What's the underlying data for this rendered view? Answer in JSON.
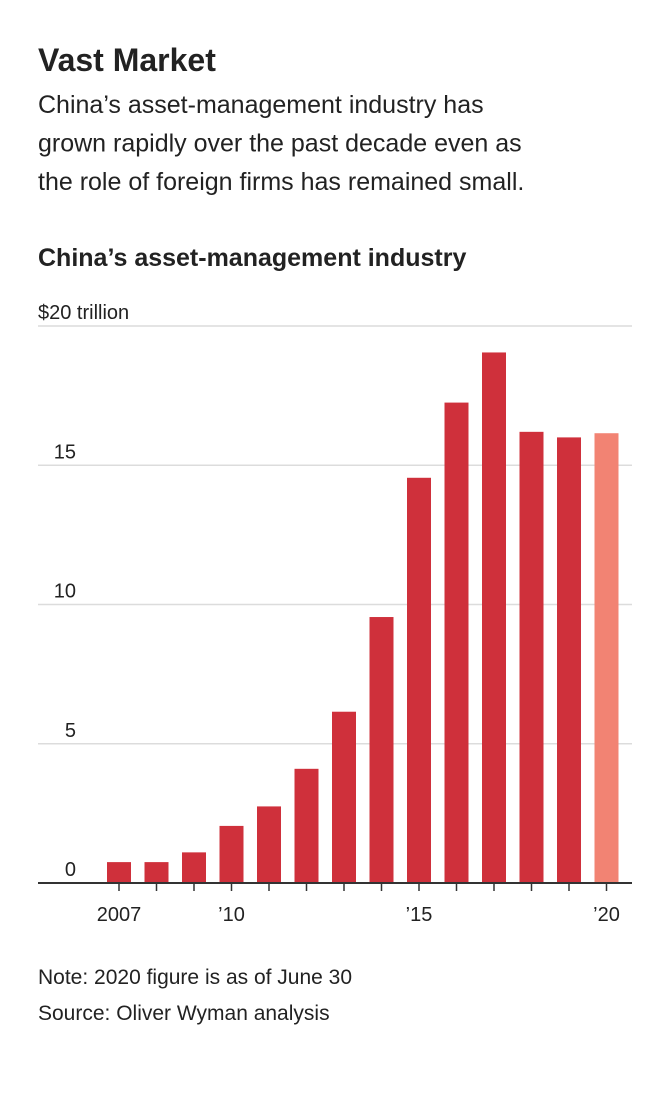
{
  "chart_data": {
    "type": "bar",
    "title": "Vast Market",
    "subtitle": [
      "China’s asset-management industry has",
      "grown rapidly over the past decade even as",
      "the role of foreign firms has remained small."
    ],
    "chart_title": "China’s asset-management industry",
    "categories": [
      "2007",
      null,
      null,
      "’10",
      null,
      null,
      null,
      null,
      "’15",
      null,
      null,
      null,
      null,
      "’20"
    ],
    "values": [
      0.75,
      0.75,
      1.1,
      2.05,
      2.75,
      4.1,
      6.15,
      9.55,
      14.55,
      17.25,
      19.05,
      16.2,
      16.0,
      16.15
    ],
    "colors": [
      "#cf303b",
      "#cf303b",
      "#cf303b",
      "#cf303b",
      "#cf303b",
      "#cf303b",
      "#cf303b",
      "#cf303b",
      "#cf303b",
      "#cf303b",
      "#cf303b",
      "#cf303b",
      "#cf303b",
      "#f28373"
    ],
    "ylim": [
      0,
      20
    ],
    "yticks": [
      0,
      5,
      10,
      15,
      {
        "value": 20,
        "label": "$20 trillion"
      }
    ],
    "grid": true,
    "notes": [
      "Note: 2020 figure is as of June 30",
      "Source: Oliver Wyman analysis"
    ]
  }
}
